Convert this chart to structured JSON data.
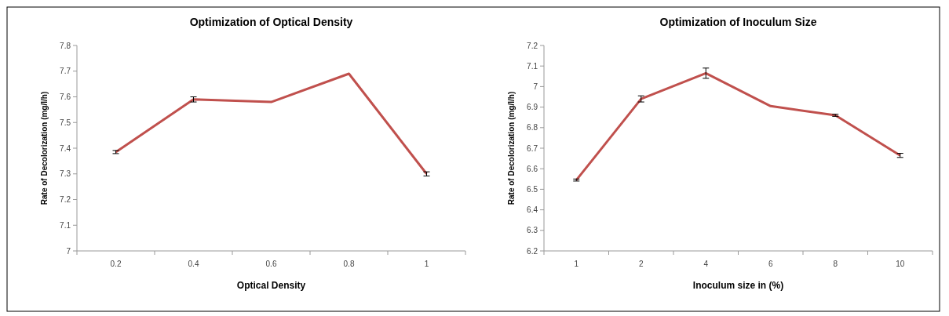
{
  "chart_data": [
    {
      "type": "line",
      "title": "Optimization of Optical Density",
      "xlabel": "Optical Density",
      "ylabel": "Rate of Decolorization (mg/l/h)",
      "categories": [
        "0.2",
        "0.4",
        "0.6",
        "0.8",
        "1"
      ],
      "series": [
        {
          "color": "#c0504d",
          "values": [
            7.385,
            7.59,
            7.58,
            7.69,
            7.3
          ],
          "errors": [
            0.006,
            0.01,
            null,
            null,
            0.008
          ]
        }
      ],
      "ylim": [
        7,
        7.8
      ],
      "yticks": [
        7,
        7.1,
        7.2,
        7.3,
        7.4,
        7.5,
        7.6,
        7.7,
        7.8
      ],
      "grid": false,
      "marker": "none",
      "line_style": "solid"
    },
    {
      "type": "line",
      "title": "Optimization of Inoculum Size",
      "xlabel": "Inoculum size in (%)",
      "ylabel": "Rate of Decolorization (mg/l/h)",
      "categories": [
        "1",
        "2",
        "4",
        "6",
        "8",
        "10"
      ],
      "series": [
        {
          "color": "#c0504d",
          "values": [
            6.545,
            6.94,
            7.065,
            6.905,
            6.86,
            6.665
          ],
          "errors": [
            0.005,
            0.015,
            0.025,
            null,
            0.005,
            0.01
          ]
        }
      ],
      "ylim": [
        6.2,
        7.2
      ],
      "yticks": [
        6.2,
        6.3,
        6.4,
        6.5,
        6.6,
        6.7,
        6.8,
        6.9,
        7,
        7.1,
        7.2
      ],
      "grid": false,
      "marker": "none",
      "line_style": "solid"
    }
  ]
}
